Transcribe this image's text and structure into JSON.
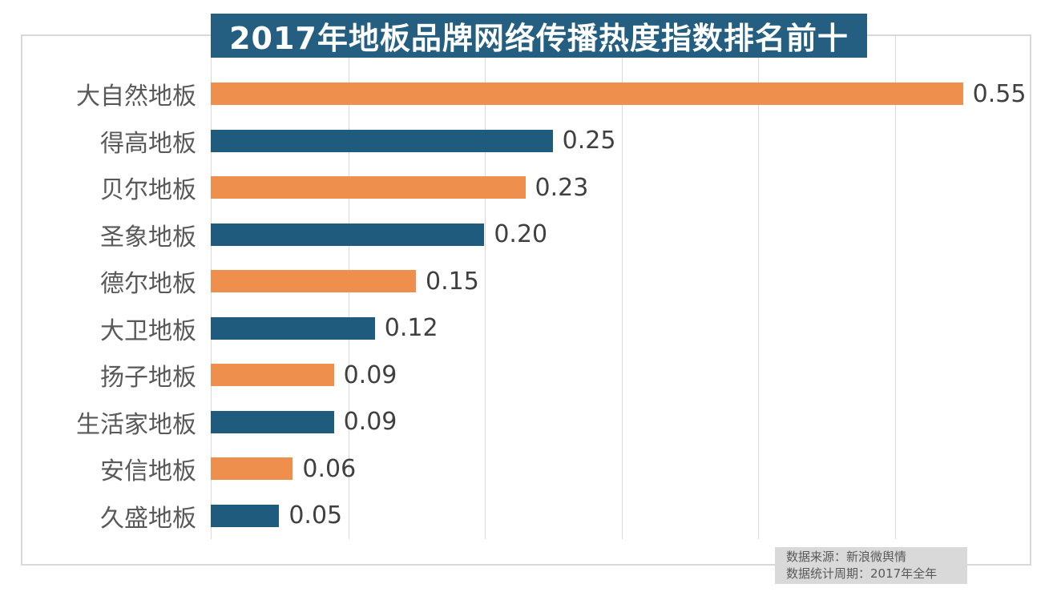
{
  "title": "2017年地板品牌网络传播热度指数排名前十",
  "source_note": {
    "line1": "数据来源：新浪微舆情",
    "line2": "数据统计周期：2017年全年"
  },
  "colors": {
    "orange_bar": "#EF8F4D",
    "blue_bar": "#1F5B7C",
    "title_background": "#245E80",
    "title_text": "#FFFFFF",
    "category_text": "#595959",
    "value_text": "#404040",
    "gridline": "#D9D9D9",
    "footer_background": "#D9D9D9"
  },
  "chart_data": {
    "type": "bar",
    "orientation": "horizontal",
    "title": "2017年地板品牌网络传播热度指数排名前十",
    "categories": [
      "大自然地板",
      "得高地板",
      "贝尔地板",
      "圣象地板",
      "德尔地板",
      "大卫地板",
      "扬子地板",
      "生活家地板",
      "安信地板",
      "久盛地板"
    ],
    "values": [
      0.55,
      0.25,
      0.23,
      0.2,
      0.15,
      0.12,
      0.09,
      0.09,
      0.06,
      0.05
    ],
    "value_labels": [
      "0.55",
      "0.25",
      "0.23",
      "0.20",
      "0.15",
      "0.12",
      "0.09",
      "0.09",
      "0.06",
      "0.05"
    ],
    "xlabel": "",
    "ylabel": "",
    "xlim": [
      0,
      0.6
    ],
    "gridline_interval": 0.1,
    "grid": true,
    "legend": false,
    "bar_color_pattern": "alternating",
    "bar_colors": [
      "#EF8F4D",
      "#1F5B7C"
    ],
    "annotations": [
      "数据来源：新浪微舆情",
      "数据统计周期：2017年全年"
    ]
  }
}
